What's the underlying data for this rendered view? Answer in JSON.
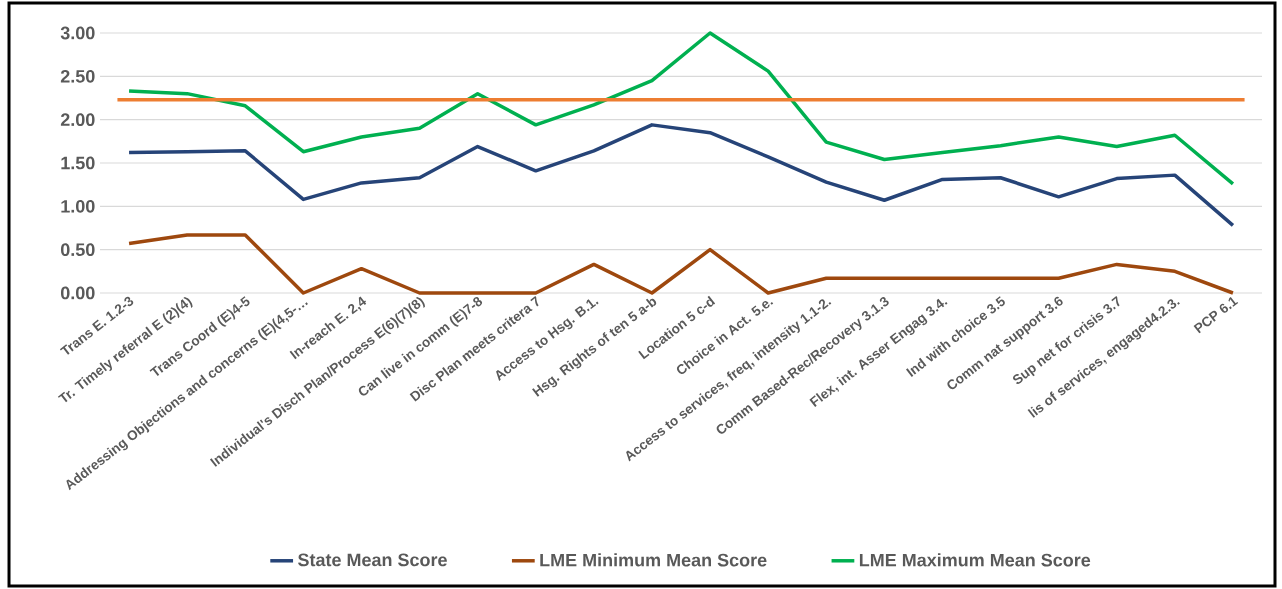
{
  "chart_data": {
    "type": "line",
    "categories": [
      "Trans E. 1.2-3",
      "Tr. Timely referral E (2)(4)",
      "Trans Coord (E)4-5",
      "Addressing Objections and concerns (E)(4,5-…",
      "In-reach E. 2,4",
      "Individual's Disch Plan/Process E(6)(7)(8)",
      "Can live in comm (E)7-8",
      "Disc Plan meets critera 7",
      "Access to Hsg. B.1.",
      "Hsg. Rights of ten  5 a-b",
      "Location 5 c-d",
      "Choice in Act. 5.e.",
      "Access to services, freq, intensity 1.1-2.",
      "Comm Based-Rec/Recovery 3.1.3",
      "Flex, int.  Asser Engag 3.4.",
      "Ind with choice 3.5",
      "Comm nat support 3.6",
      "Sup net for crisis 3.7",
      "lis of services, engaged4.2.3.",
      "PCP 6.1"
    ],
    "series": [
      {
        "name": "State Mean Score",
        "color": "#264478",
        "values": [
          1.62,
          1.63,
          1.64,
          1.08,
          1.27,
          1.33,
          1.69,
          1.41,
          1.64,
          1.94,
          1.85,
          1.57,
          1.28,
          1.07,
          1.31,
          1.33,
          1.11,
          1.32,
          1.36,
          0.78
        ]
      },
      {
        "name": "LME Minimum Mean Score",
        "color": "#9e480e",
        "values": [
          0.57,
          0.67,
          0.67,
          0,
          0.28,
          0,
          0,
          0,
          0.33,
          0,
          0.5,
          0,
          0.17,
          0.17,
          0.17,
          0.17,
          0.17,
          0.33,
          0.25,
          0
        ]
      },
      {
        "name": "LME Maximum Mean Score",
        "color": "#00b050",
        "values": [
          2.33,
          2.3,
          2.16,
          1.63,
          1.8,
          1.9,
          2.3,
          1.94,
          2.17,
          2.45,
          3.0,
          2.56,
          1.74,
          1.54,
          1.62,
          1.7,
          1.8,
          1.69,
          1.82,
          1.26
        ]
      }
    ],
    "ref_lines": [
      {
        "axis": "y",
        "value": 2.23,
        "color": "#ed7d31"
      }
    ],
    "ylim": [
      0,
      3
    ],
    "yticks": [
      {
        "value": 0,
        "label": "0.00"
      },
      {
        "value": 0.5,
        "label": "0.50"
      },
      {
        "value": 1,
        "label": "1.00"
      },
      {
        "value": 1.5,
        "label": "1.50"
      },
      {
        "value": 2,
        "label": "2.00"
      },
      {
        "value": 2.5,
        "label": "2.50"
      },
      {
        "value": 3,
        "label": "3.00"
      }
    ],
    "grid": "y",
    "legend": "bottom",
    "marker": "none",
    "line_style": "solid"
  }
}
